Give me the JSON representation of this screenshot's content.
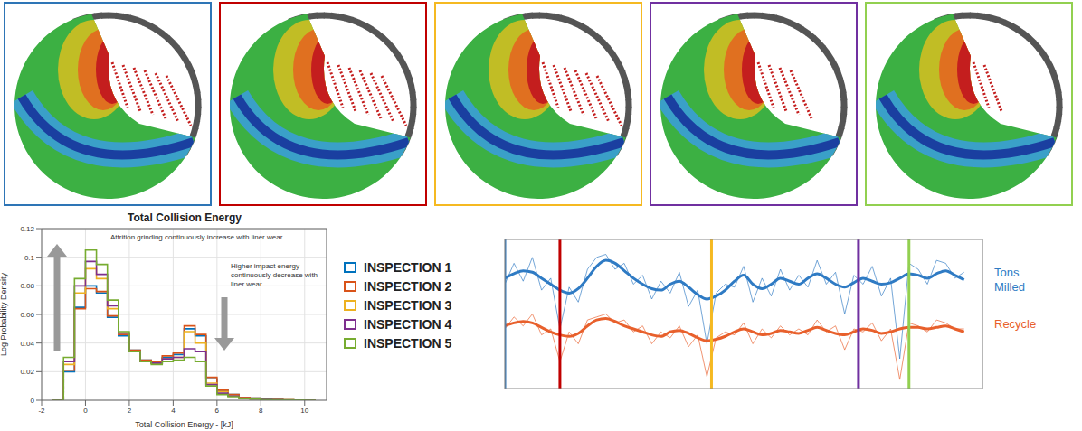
{
  "panels": [
    {
      "color": "#2e75b6"
    },
    {
      "color": "#c00000"
    },
    {
      "color": "#f5b921"
    },
    {
      "color": "#7030a0"
    },
    {
      "color": "#92d050"
    }
  ],
  "chart_data": [
    {
      "type": "histogram",
      "title": "Total Collision Energy",
      "x_label": "Total Collision Energy - [kJ]",
      "y_label": "Log Probability Density",
      "bins": [
        -1.5,
        -1,
        -0.5,
        0,
        0.5,
        1,
        1.5,
        2,
        2.5,
        3,
        3.5,
        4,
        4.5,
        5,
        5.5,
        6,
        6.5,
        7,
        7.5,
        8,
        8.5,
        9,
        9.5,
        10,
        10.5
      ],
      "series": [
        {
          "name": "INSPECTION 1",
          "color": "#0072BD",
          "values": [
            0,
            0.02,
            0.065,
            0.08,
            0.075,
            0.058,
            0.045,
            0.035,
            0.028,
            0.026,
            0.03,
            0.032,
            0.05,
            0.045,
            0.015,
            0.007,
            0.004,
            0.002,
            0.0015,
            0.001,
            0.0006,
            0.0003,
            0.0002,
            0.0001
          ]
        },
        {
          "name": "INSPECTION 2",
          "color": "#D95319",
          "values": [
            0,
            0.021,
            0.064,
            0.078,
            0.076,
            0.059,
            0.046,
            0.035,
            0.028,
            0.027,
            0.031,
            0.033,
            0.052,
            0.046,
            0.016,
            0.007,
            0.004,
            0.002,
            0.0015,
            0.001,
            0.0006,
            0.0003,
            0.0002,
            0.0001
          ]
        },
        {
          "name": "INSPECTION 3",
          "color": "#EDB120",
          "values": [
            0,
            0.025,
            0.075,
            0.092,
            0.085,
            0.064,
            0.047,
            0.034,
            0.027,
            0.026,
            0.029,
            0.03,
            0.048,
            0.04,
            0.012,
            0.006,
            0.003,
            0.0015,
            0.001,
            0.0008,
            0.0005,
            0.0003,
            0.0002,
            0.0001
          ]
        },
        {
          "name": "INSPECTION 4",
          "color": "#7E2F8E",
          "values": [
            0,
            0.027,
            0.08,
            0.097,
            0.088,
            0.066,
            0.047,
            0.034,
            0.027,
            0.026,
            0.029,
            0.03,
            0.036,
            0.034,
            0.011,
            0.005,
            0.003,
            0.0015,
            0.001,
            0.0007,
            0.0004,
            0.0002,
            0.0001,
            0
          ]
        },
        {
          "name": "INSPECTION 5",
          "color": "#77AC30",
          "values": [
            0,
            0.03,
            0.085,
            0.105,
            0.095,
            0.07,
            0.048,
            0.034,
            0.027,
            0.025,
            0.027,
            0.028,
            0.03,
            0.027,
            0.01,
            0.004,
            0.0025,
            0.0012,
            0.0008,
            0.0005,
            0.0003,
            0.0002,
            0.0001,
            0
          ]
        }
      ],
      "xlim": [
        -2,
        11
      ],
      "xticks": [
        -2,
        0,
        2,
        4,
        6,
        8,
        10
      ],
      "ylim": [
        0,
        0.12
      ],
      "yticks": [
        0,
        0.02,
        0.04,
        0.06,
        0.08,
        0.1,
        0.12
      ],
      "grid": true,
      "legend": "right",
      "annotations": [
        {
          "text": "Attrition grinding continuously increase with liner wear"
        },
        {
          "text": "Higher impact energy continuously decrease with liner wear"
        }
      ]
    },
    {
      "type": "line",
      "x": [
        0,
        2,
        4,
        6,
        8,
        10,
        12,
        14,
        16,
        18,
        20,
        22,
        24,
        26,
        28,
        30,
        32,
        34,
        36,
        38,
        40,
        42,
        44,
        46,
        48,
        50,
        52,
        54,
        56,
        58,
        60,
        62,
        64,
        66,
        68,
        70,
        72,
        74,
        76,
        78,
        80,
        82,
        84,
        86,
        88,
        90,
        92,
        94,
        96,
        98,
        100
      ],
      "series": [
        {
          "name": "Tons Milled",
          "color": "#2f7bc4",
          "values": [
            74,
            77,
            79,
            78,
            74,
            70,
            66,
            64,
            67,
            74,
            82,
            86,
            84,
            79,
            74,
            70,
            67,
            66,
            70,
            72,
            68,
            63,
            60,
            62,
            66,
            72,
            76,
            70,
            67,
            70,
            74,
            72,
            70,
            74,
            77,
            74,
            70,
            68,
            71,
            74,
            72,
            70,
            71,
            74,
            77,
            76,
            74,
            77,
            79,
            76,
            73
          ],
          "raw_values": [
            70,
            84,
            72,
            88,
            66,
            74,
            40,
            68,
            58,
            80,
            88,
            90,
            80,
            84,
            70,
            76,
            60,
            72,
            64,
            78,
            55,
            66,
            30,
            64,
            70,
            68,
            82,
            58,
            74,
            62,
            80,
            66,
            76,
            68,
            86,
            70,
            78,
            50,
            76,
            70,
            82,
            62,
            74,
            20,
            84,
            80,
            70,
            86,
            84,
            74,
            78
          ]
        },
        {
          "name": "Recycle",
          "color": "#e8602c",
          "values": [
            42,
            44,
            45,
            44,
            41,
            38,
            36,
            35,
            37,
            42,
            46,
            47,
            45,
            42,
            40,
            38,
            36,
            35,
            38,
            39,
            37,
            34,
            32,
            33,
            35,
            38,
            40,
            38,
            36,
            37,
            39,
            38,
            37,
            39,
            41,
            39,
            37,
            36,
            38,
            40,
            39,
            37,
            38,
            40,
            41,
            41,
            40,
            41,
            42,
            40,
            38
          ],
          "raw_values": [
            40,
            48,
            42,
            50,
            36,
            40,
            18,
            38,
            30,
            46,
            48,
            50,
            44,
            46,
            38,
            42,
            30,
            38,
            34,
            42,
            28,
            36,
            8,
            34,
            38,
            36,
            44,
            30,
            40,
            34,
            42,
            36,
            40,
            36,
            46,
            38,
            42,
            26,
            40,
            38,
            44,
            32,
            40,
            6,
            44,
            42,
            38,
            46,
            44,
            40,
            40
          ]
        }
      ],
      "xlim": [
        0,
        104
      ],
      "xticks": [
        0,
        8,
        16,
        24,
        32,
        40,
        48,
        56,
        64,
        72,
        80,
        88,
        96,
        104
      ],
      "ylim": [
        0,
        100
      ],
      "yticks": [
        0,
        100
      ],
      "grid": "x",
      "tick_labels": false,
      "inspections": [
        {
          "x": 0,
          "color": "#2e75b6"
        },
        {
          "x": 12,
          "color": "#c00000"
        },
        {
          "x": 45,
          "color": "#f5b921"
        },
        {
          "x": 77,
          "color": "#7030a0"
        },
        {
          "x": 88,
          "color": "#92d050"
        }
      ]
    }
  ]
}
